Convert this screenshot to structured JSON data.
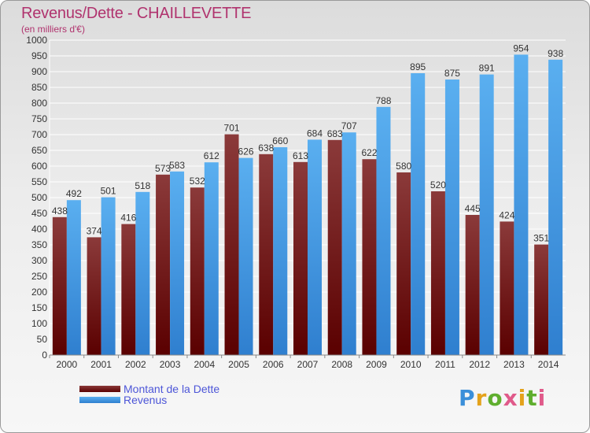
{
  "header": {
    "title": "Revenus/Dette - CHAILLEVETTE",
    "subtitle": "(en milliers d'€)"
  },
  "colors": {
    "debt_top": "#8b3a3a",
    "debt_bottom": "#5a0000",
    "revenue_top": "#5aaff0",
    "revenue_bottom": "#2f7fcf",
    "title": "#b0336e",
    "legend_text": "#4d56d8"
  },
  "legend": {
    "debt_label": "Montant de la Dette",
    "revenue_label": "Revenus"
  },
  "logo": {
    "text": "Proxiti"
  },
  "chart_data": {
    "type": "bar",
    "title": "Revenus/Dette - CHAILLEVETTE",
    "subtitle": "(en milliers d'€)",
    "categories": [
      "2000",
      "2001",
      "2002",
      "2003",
      "2004",
      "2005",
      "2006",
      "2007",
      "2008",
      "2009",
      "2010",
      "2011",
      "2012",
      "2013",
      "2014"
    ],
    "series": [
      {
        "name": "Montant de la Dette",
        "values": [
          438,
          374,
          416,
          573,
          532,
          701,
          638,
          613,
          683,
          622,
          580,
          520,
          445,
          424,
          351
        ]
      },
      {
        "name": "Revenus",
        "values": [
          492,
          501,
          518,
          583,
          612,
          626,
          660,
          684,
          707,
          788,
          895,
          875,
          891,
          954,
          938
        ]
      }
    ],
    "ylim": [
      0,
      1000
    ],
    "ytick_step": 50,
    "grid": "horizontal",
    "legend_position": "bottom-left",
    "xlabel": "",
    "ylabel": ""
  }
}
